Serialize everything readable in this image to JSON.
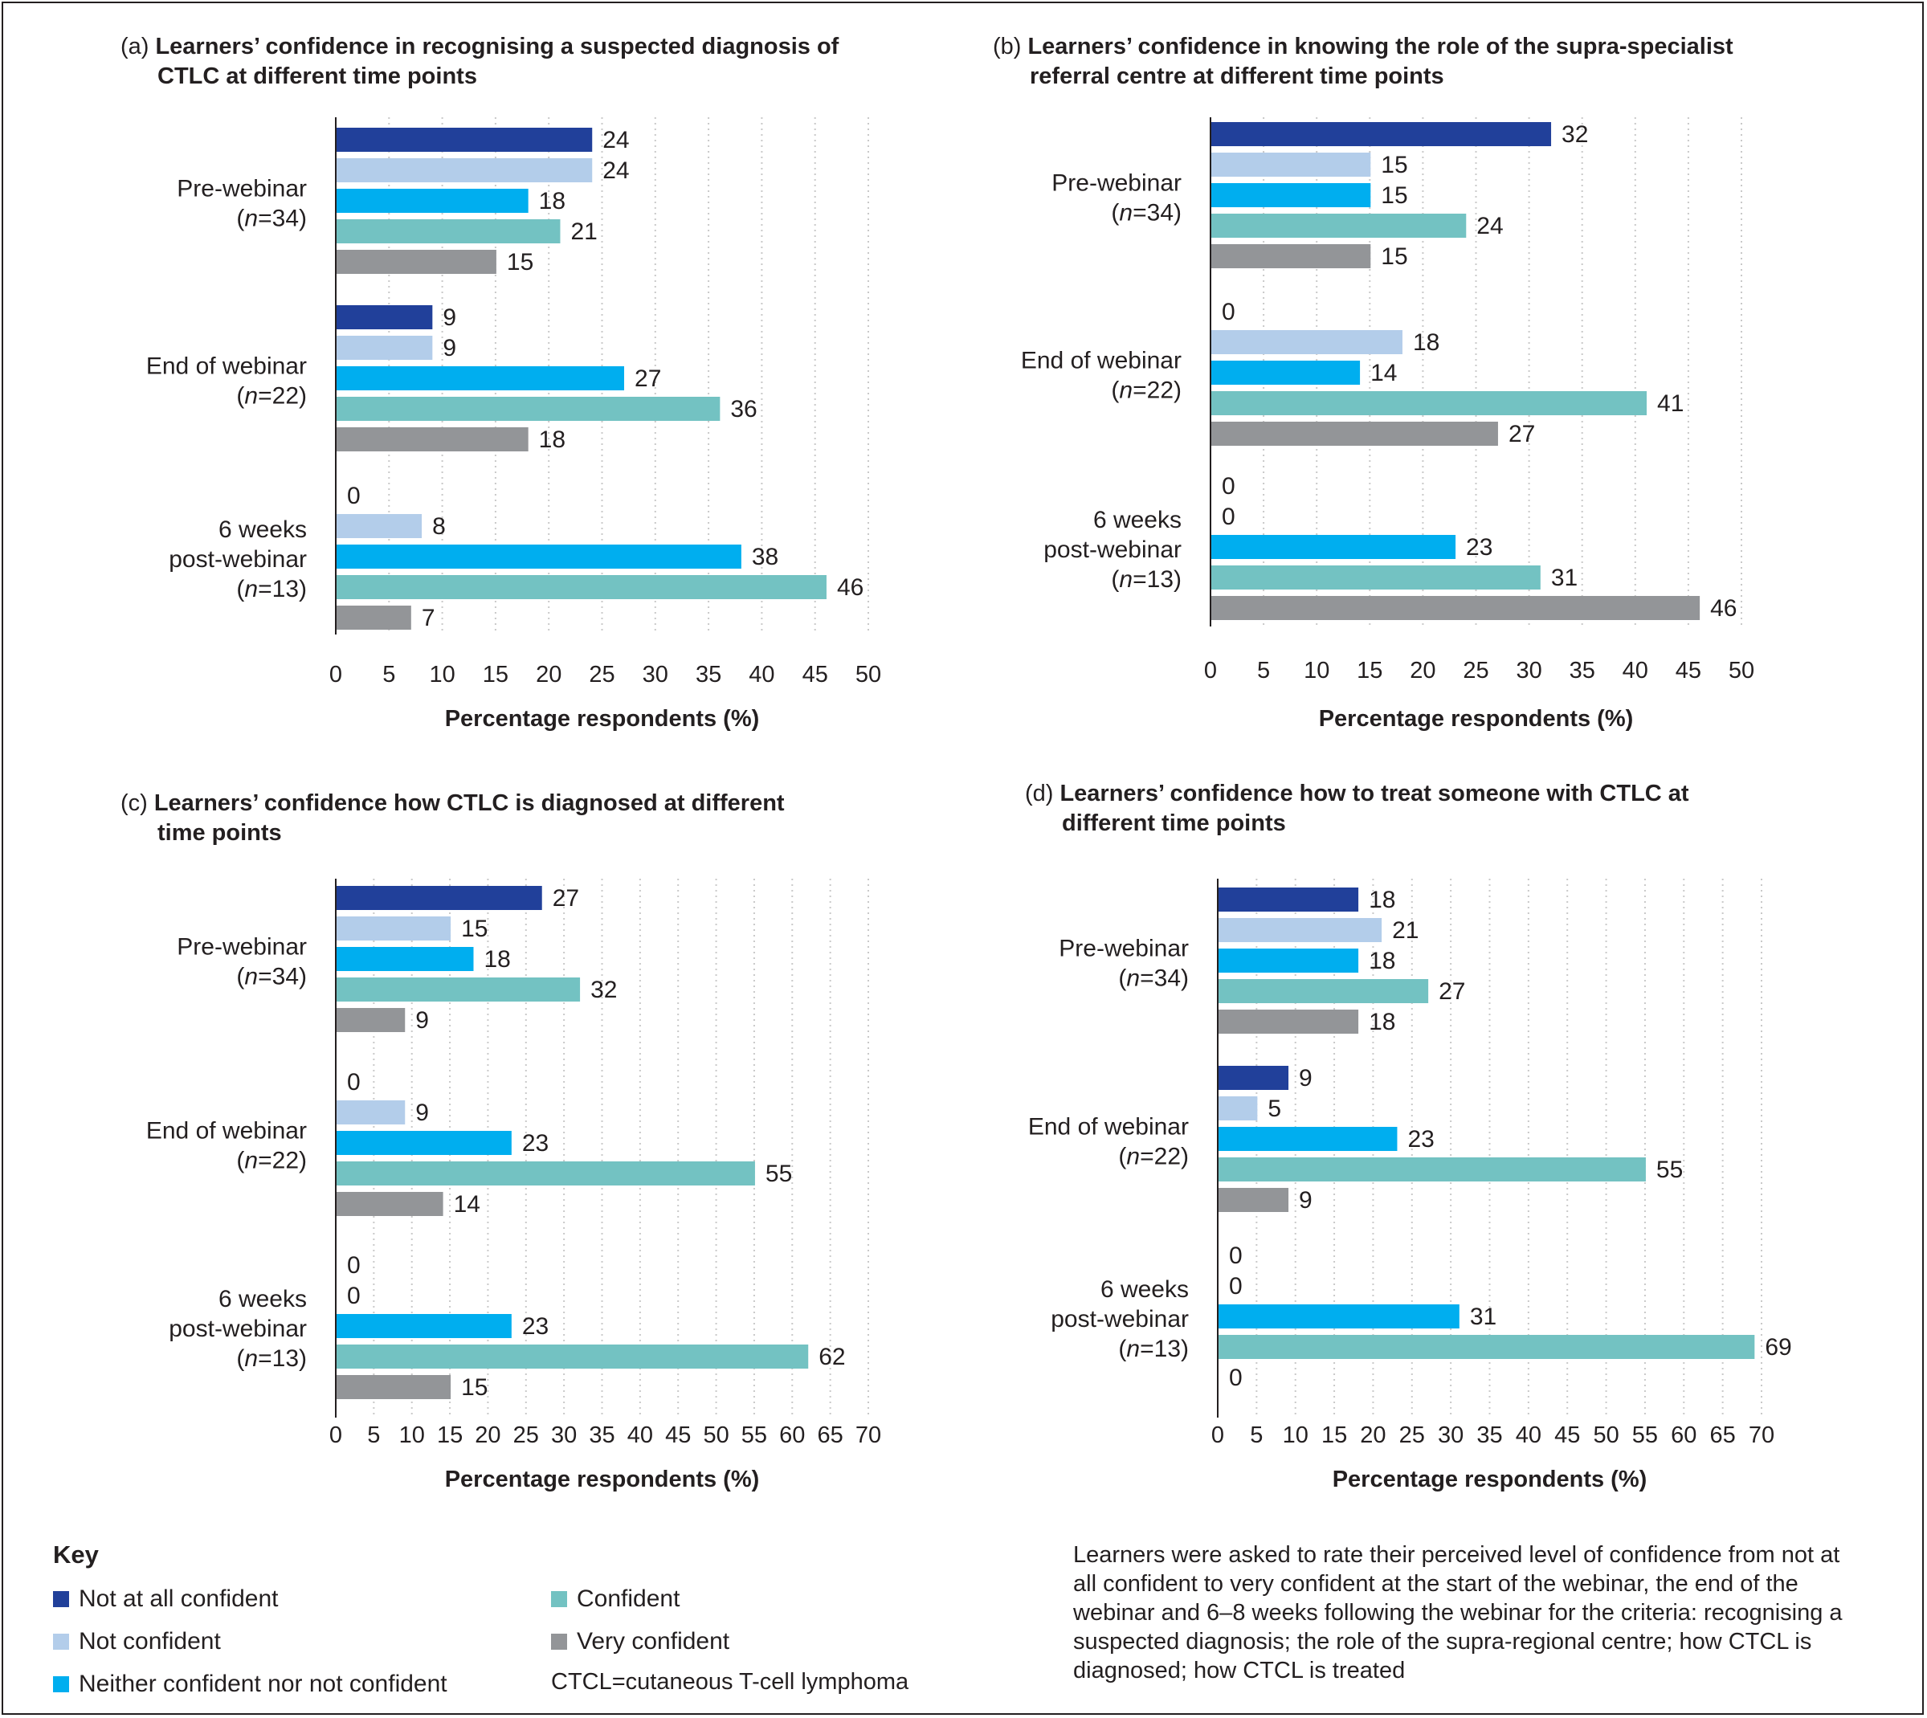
{
  "chart_data": [
    {
      "type": "bar",
      "orientation": "horizontal",
      "letter": "(a)",
      "title_line1": "Learners’ confidence in recognising a suspected diagnosis of",
      "title_line2": "CTLC at different time points",
      "xlabel": "Percentage respondents (%)",
      "xlim": [
        0,
        50
      ],
      "xticks": [
        0,
        5,
        10,
        15,
        20,
        25,
        30,
        35,
        40,
        45,
        50
      ],
      "groups": [
        {
          "label": [
            "Pre-webinar",
            "(n=34)"
          ],
          "values": [
            24,
            24,
            18,
            21,
            15
          ]
        },
        {
          "label": [
            "End of webinar",
            "(n=22)"
          ],
          "values": [
            9,
            9,
            27,
            36,
            18
          ]
        },
        {
          "label": [
            "6 weeks",
            "post-webinar",
            "(n=13)"
          ],
          "values": [
            0,
            8,
            38,
            46,
            7
          ]
        }
      ]
    },
    {
      "type": "bar",
      "orientation": "horizontal",
      "letter": "(b)",
      "title_line1": "Learners’ confidence in knowing the role of the supra-specialist",
      "title_line2": "referral centre at different time points",
      "xlabel": "Percentage respondents (%)",
      "xlim": [
        0,
        50
      ],
      "xticks": [
        0,
        5,
        10,
        15,
        20,
        25,
        30,
        35,
        40,
        45,
        50
      ],
      "groups": [
        {
          "label": [
            "Pre-webinar",
            "(n=34)"
          ],
          "values": [
            32,
            15,
            15,
            24,
            15
          ]
        },
        {
          "label": [
            "End of webinar",
            "(n=22)"
          ],
          "values": [
            0,
            18,
            14,
            41,
            27
          ]
        },
        {
          "label": [
            "6 weeks",
            "post-webinar",
            "(n=13)"
          ],
          "values": [
            0,
            0,
            23,
            31,
            46
          ]
        }
      ]
    },
    {
      "type": "bar",
      "orientation": "horizontal",
      "letter": "(c)",
      "title_line1": "Learners’ confidence how CTLC is diagnosed at different",
      "title_line2": "time points",
      "xlabel": "Percentage respondents (%)",
      "xlim": [
        0,
        70
      ],
      "xticks": [
        0,
        5,
        10,
        15,
        20,
        25,
        30,
        35,
        40,
        45,
        50,
        55,
        60,
        65,
        70
      ],
      "groups": [
        {
          "label": [
            "Pre-webinar",
            "(n=34)"
          ],
          "values": [
            27,
            15,
            18,
            32,
            9
          ]
        },
        {
          "label": [
            "End of webinar",
            "(n=22)"
          ],
          "values": [
            0,
            9,
            23,
            55,
            14
          ]
        },
        {
          "label": [
            "6 weeks",
            "post-webinar",
            "(n=13)"
          ],
          "values": [
            0,
            0,
            23,
            62,
            15
          ]
        }
      ]
    },
    {
      "type": "bar",
      "orientation": "horizontal",
      "letter": "(d)",
      "title_line1": "Learners’ confidence how to treat someone with CTLC at",
      "title_line2": "different time points",
      "xlabel": "Percentage respondents (%)",
      "xlim": [
        0,
        70
      ],
      "xticks": [
        0,
        5,
        10,
        15,
        20,
        25,
        30,
        35,
        40,
        45,
        50,
        55,
        60,
        65,
        70
      ],
      "groups": [
        {
          "label": [
            "Pre-webinar",
            "(n=34)"
          ],
          "values": [
            18,
            21,
            18,
            27,
            18
          ]
        },
        {
          "label": [
            "End of webinar",
            "(n=22)"
          ],
          "values": [
            9,
            5,
            23,
            55,
            9
          ]
        },
        {
          "label": [
            "6 weeks",
            "post-webinar",
            "(n=13)"
          ],
          "values": [
            0,
            0,
            31,
            69,
            0
          ]
        }
      ]
    }
  ],
  "series": [
    {
      "name": "Not at all confident",
      "color": "#21409a"
    },
    {
      "name": "Not confident",
      "color": "#b3cdea"
    },
    {
      "name": "Neither confident nor not confident",
      "color": "#00aeef"
    },
    {
      "name": "Confident",
      "color": "#73c2c2"
    },
    {
      "name": "Very confident",
      "color": "#939598"
    }
  ],
  "key": {
    "title": "Key",
    "abbreviation": "CTCL=cutaneous T-cell lymphoma"
  },
  "note": "Learners were asked to rate their perceived level of confidence from not at all confident to very confident at the start of the webinar, the end of the webinar and 6–8 weeks following the webinar for the criteria: recognising a suspected diagnosis; the role of the supra-regional centre; how CTCL is diagnosed; how CTCL is treated"
}
